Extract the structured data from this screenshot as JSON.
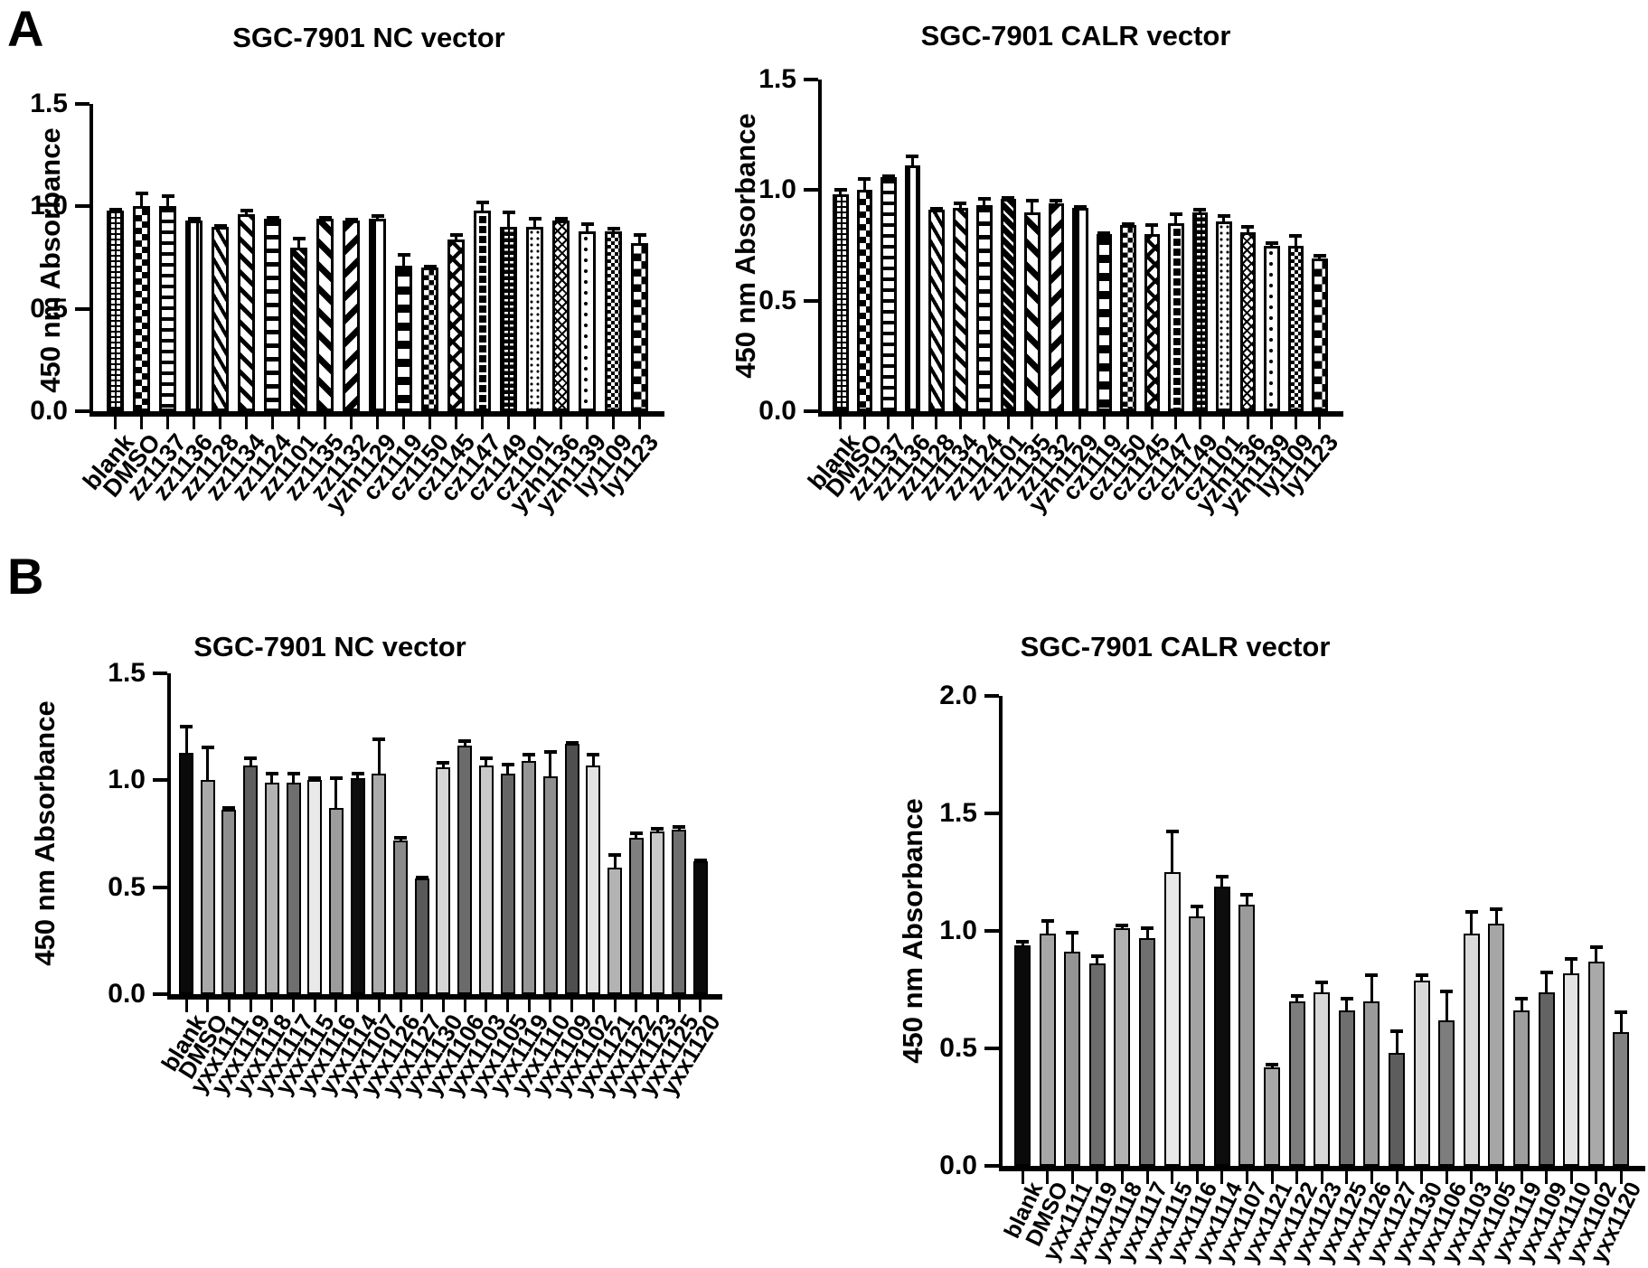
{
  "figure": {
    "background": "#ffffff",
    "ink": "#000000"
  },
  "panels": [
    {
      "label": "A"
    },
    {
      "label": "B"
    }
  ],
  "chart_data": [
    {
      "id": "chart-a-nc",
      "panel": "A",
      "type": "bar",
      "title": "SGC-7901 NC vector",
      "ylabel": "450 nm Absorbance",
      "yticks": [
        "0.0",
        "0.5",
        "1.0",
        "1.5"
      ],
      "ylim": [
        0,
        1.5
      ],
      "grid": false,
      "fill": "black-white-pattern",
      "error_bars": "upper",
      "bars": [
        {
          "label": "blank",
          "value": 0.98,
          "err": 0.01,
          "pattern": "grid-fine"
        },
        {
          "label": "DMSO",
          "value": 1.0,
          "err": 0.07,
          "pattern": "checker"
        },
        {
          "label": "zz1137",
          "value": 1.0,
          "err": 0.06,
          "pattern": "hlines"
        },
        {
          "label": "zz1136",
          "value": 0.93,
          "err": 0.02,
          "pattern": "vlines-thin"
        },
        {
          "label": "zz1128",
          "value": 0.9,
          "err": 0.01,
          "pattern": "diag-steep"
        },
        {
          "label": "zz1134",
          "value": 0.96,
          "err": 0.03,
          "pattern": "diag-left"
        },
        {
          "label": "zz1124",
          "value": 0.94,
          "err": 0.01,
          "pattern": "hlines-wide"
        },
        {
          "label": "zz1101",
          "value": 0.8,
          "err": 0.05,
          "pattern": "diag-dark"
        },
        {
          "label": "zz1135",
          "value": 0.94,
          "err": 0.01,
          "pattern": "diag-thick"
        },
        {
          "label": "zz1132",
          "value": 0.93,
          "err": 0.01,
          "pattern": "diag-right"
        },
        {
          "label": "yzh1129",
          "value": 0.94,
          "err": 0.02,
          "pattern": "vlines-wide"
        },
        {
          "label": "cz1119",
          "value": 0.71,
          "err": 0.06,
          "pattern": "hrungs"
        },
        {
          "label": "cz1150",
          "value": 0.7,
          "err": 0.01,
          "pattern": "checker-mid"
        },
        {
          "label": "cz1145",
          "value": 0.84,
          "err": 0.03,
          "pattern": "crosshatch"
        },
        {
          "label": "cz1147",
          "value": 0.98,
          "err": 0.05,
          "pattern": "meander"
        },
        {
          "label": "cz1149",
          "value": 0.9,
          "err": 0.08,
          "pattern": "dashgrid"
        },
        {
          "label": "cz1101",
          "value": 0.9,
          "err": 0.05,
          "pattern": "dots-fine"
        },
        {
          "label": "yzh1136",
          "value": 0.93,
          "err": 0.02,
          "pattern": "herring"
        },
        {
          "label": "yzh1139",
          "value": 0.88,
          "err": 0.04,
          "pattern": "dots-sparse"
        },
        {
          "label": "ly1109",
          "value": 0.88,
          "err": 0.02,
          "pattern": "checker-fine"
        },
        {
          "label": "ly1123",
          "value": 0.82,
          "err": 0.05,
          "pattern": "checker-coarse"
        }
      ]
    },
    {
      "id": "chart-a-calr",
      "panel": "A",
      "type": "bar",
      "title": "SGC-7901 CALR vector",
      "ylabel": "450 nm Absorbance",
      "yticks": [
        "0.0",
        "0.5",
        "1.0",
        "1.5"
      ],
      "ylim": [
        0,
        1.5
      ],
      "grid": false,
      "fill": "black-white-pattern",
      "error_bars": "upper",
      "bars": [
        {
          "label": "blank",
          "value": 0.98,
          "err": 0.03,
          "pattern": "grid-fine"
        },
        {
          "label": "DMSO",
          "value": 1.0,
          "err": 0.06,
          "pattern": "checker"
        },
        {
          "label": "zz1137",
          "value": 1.06,
          "err": 0.01,
          "pattern": "hlines"
        },
        {
          "label": "zz1136",
          "value": 1.11,
          "err": 0.05,
          "pattern": "vlines-thin"
        },
        {
          "label": "zz1128",
          "value": 0.91,
          "err": 0.01,
          "pattern": "diag-steep"
        },
        {
          "label": "zz1134",
          "value": 0.92,
          "err": 0.03,
          "pattern": "diag-left"
        },
        {
          "label": "zz1124",
          "value": 0.93,
          "err": 0.04,
          "pattern": "hlines-wide"
        },
        {
          "label": "zz1101",
          "value": 0.96,
          "err": 0.01,
          "pattern": "diag-dark"
        },
        {
          "label": "zz1135",
          "value": 0.9,
          "err": 0.06,
          "pattern": "diag-thick"
        },
        {
          "label": "zz1132",
          "value": 0.94,
          "err": 0.02,
          "pattern": "diag-right"
        },
        {
          "label": "yzh1129",
          "value": 0.92,
          "err": 0.01,
          "pattern": "vlines-wide"
        },
        {
          "label": "cz1119",
          "value": 0.8,
          "err": 0.01,
          "pattern": "hrungs"
        },
        {
          "label": "cz1150",
          "value": 0.84,
          "err": 0.01,
          "pattern": "checker-mid"
        },
        {
          "label": "cz1145",
          "value": 0.8,
          "err": 0.05,
          "pattern": "crosshatch"
        },
        {
          "label": "cz1147",
          "value": 0.85,
          "err": 0.05,
          "pattern": "meander"
        },
        {
          "label": "cz1149",
          "value": 0.9,
          "err": 0.02,
          "pattern": "dashgrid"
        },
        {
          "label": "cz1101",
          "value": 0.86,
          "err": 0.03,
          "pattern": "dots-fine"
        },
        {
          "label": "yzh1136",
          "value": 0.81,
          "err": 0.03,
          "pattern": "herring"
        },
        {
          "label": "yzh1139",
          "value": 0.75,
          "err": 0.02,
          "pattern": "dots-sparse"
        },
        {
          "label": "ly1109",
          "value": 0.75,
          "err": 0.05,
          "pattern": "checker-fine"
        },
        {
          "label": "ly1123",
          "value": 0.69,
          "err": 0.02,
          "pattern": "checker-coarse"
        }
      ]
    },
    {
      "id": "chart-b-nc",
      "panel": "B",
      "type": "bar",
      "title": "SGC-7901 NC vector",
      "ylabel": "450 nm Absorbance",
      "yticks": [
        "0.0",
        "0.5",
        "1.0",
        "1.5"
      ],
      "ylim": [
        0,
        1.5
      ],
      "grid": false,
      "fill": "solid-grayscale",
      "error_bars": "upper",
      "bars": [
        {
          "label": "blank",
          "value": 1.13,
          "err": 0.13,
          "color": "#0a0a0a"
        },
        {
          "label": "DMSO",
          "value": 1.0,
          "err": 0.16,
          "color": "#a9a9a9"
        },
        {
          "label": "yxx1111",
          "value": 0.86,
          "err": 0.02,
          "color": "#8f8f8f"
        },
        {
          "label": "yxx1119",
          "value": 1.07,
          "err": 0.04,
          "color": "#5f5f5f"
        },
        {
          "label": "yxx1118",
          "value": 0.99,
          "err": 0.05,
          "color": "#b3b3b3"
        },
        {
          "label": "yxx1117",
          "value": 0.99,
          "err": 0.05,
          "color": "#6f6f6f"
        },
        {
          "label": "yxx1115",
          "value": 1.0,
          "err": 0.02,
          "color": "#e9e9e9"
        },
        {
          "label": "yxx1116",
          "value": 0.87,
          "err": 0.15,
          "color": "#9c9c9c"
        },
        {
          "label": "yxx1114",
          "value": 1.01,
          "err": 0.03,
          "color": "#0d0d0d"
        },
        {
          "label": "yxx1107",
          "value": 1.03,
          "err": 0.17,
          "color": "#ababab"
        },
        {
          "label": "yxx1126",
          "value": 0.72,
          "err": 0.02,
          "color": "#8a8a8a"
        },
        {
          "label": "yxx1127",
          "value": 0.54,
          "err": 0.01,
          "color": "#595959"
        },
        {
          "label": "yxx1130",
          "value": 1.06,
          "err": 0.03,
          "color": "#d6d6d6"
        },
        {
          "label": "yxx1106",
          "value": 1.16,
          "err": 0.03,
          "color": "#6b6b6b"
        },
        {
          "label": "yxx1103",
          "value": 1.07,
          "err": 0.04,
          "color": "#c9c9c9"
        },
        {
          "label": "yxx1105",
          "value": 1.03,
          "err": 0.05,
          "color": "#666666"
        },
        {
          "label": "yxx1119",
          "value": 1.09,
          "err": 0.04,
          "color": "#959595"
        },
        {
          "label": "yxx1110",
          "value": 1.02,
          "err": 0.12,
          "color": "#8f8f8f"
        },
        {
          "label": "yxx1109",
          "value": 1.17,
          "err": 0.01,
          "color": "#4f4f4f"
        },
        {
          "label": "yxx1102",
          "value": 1.07,
          "err": 0.06,
          "color": "#e3e3e3"
        },
        {
          "label": "yxx1121",
          "value": 0.59,
          "err": 0.07,
          "color": "#b3b3b3"
        },
        {
          "label": "yxx1122",
          "value": 0.73,
          "err": 0.03,
          "color": "#808080"
        },
        {
          "label": "yxx1123",
          "value": 0.76,
          "err": 0.02,
          "color": "#c9c9c9"
        },
        {
          "label": "yxx1125",
          "value": 0.77,
          "err": 0.02,
          "color": "#6e6e6e"
        },
        {
          "label": "yxx1120",
          "value": 0.62,
          "err": 0.01,
          "color": "#0a0a0a"
        }
      ]
    },
    {
      "id": "chart-b-calr",
      "panel": "B",
      "type": "bar",
      "title": "SGC-7901 CALR vector",
      "ylabel": "450 nm Absorbance",
      "yticks": [
        "0.0",
        "0.5",
        "1.0",
        "1.5",
        "2.0"
      ],
      "ylim": [
        0,
        2.0
      ],
      "grid": false,
      "fill": "solid-grayscale",
      "error_bars": "upper",
      "bars": [
        {
          "label": "blank",
          "value": 0.94,
          "err": 0.02,
          "color": "#0a0a0a"
        },
        {
          "label": "DMSO",
          "value": 0.99,
          "err": 0.06,
          "color": "#a6a6a6"
        },
        {
          "label": "yxx1111",
          "value": 0.91,
          "err": 0.09,
          "color": "#949494"
        },
        {
          "label": "yxx1119",
          "value": 0.86,
          "err": 0.04,
          "color": "#6d6d6d"
        },
        {
          "label": "yxx1118",
          "value": 1.01,
          "err": 0.02,
          "color": "#b0b0b0"
        },
        {
          "label": "yxx1117",
          "value": 0.97,
          "err": 0.05,
          "color": "#707070"
        },
        {
          "label": "yxx1115",
          "value": 1.25,
          "err": 0.18,
          "color": "#e8e8e8"
        },
        {
          "label": "yxx1116",
          "value": 1.06,
          "err": 0.05,
          "color": "#a3a3a3"
        },
        {
          "label": "yxx1114",
          "value": 1.19,
          "err": 0.05,
          "color": "#0d0d0d"
        },
        {
          "label": "yxx1107",
          "value": 1.11,
          "err": 0.05,
          "color": "#9b9b9b"
        },
        {
          "label": "yxx1121",
          "value": 0.42,
          "err": 0.02,
          "color": "#a8a8a8"
        },
        {
          "label": "yxx1122",
          "value": 0.7,
          "err": 0.03,
          "color": "#7d7d7d"
        },
        {
          "label": "yxx1123",
          "value": 0.74,
          "err": 0.05,
          "color": "#d8d8d8"
        },
        {
          "label": "yxx1125",
          "value": 0.66,
          "err": 0.06,
          "color": "#6f6f6f"
        },
        {
          "label": "yxx1126",
          "value": 0.7,
          "err": 0.12,
          "color": "#9a9a9a"
        },
        {
          "label": "yxx1127",
          "value": 0.48,
          "err": 0.1,
          "color": "#5d5d5d"
        },
        {
          "label": "yxx1130",
          "value": 0.79,
          "err": 0.03,
          "color": "#d9d9d9"
        },
        {
          "label": "yxx1106",
          "value": 0.62,
          "err": 0.13,
          "color": "#7d7d7d"
        },
        {
          "label": "yxx1103",
          "value": 0.99,
          "err": 0.1,
          "color": "#d9d9d9"
        },
        {
          "label": "yxx1105",
          "value": 1.03,
          "err": 0.07,
          "color": "#a6a6a6"
        },
        {
          "label": "yxx1119",
          "value": 0.66,
          "err": 0.06,
          "color": "#9e9e9e"
        },
        {
          "label": "yxx1109",
          "value": 0.74,
          "err": 0.09,
          "color": "#636363"
        },
        {
          "label": "yxx1110",
          "value": 0.82,
          "err": 0.07,
          "color": "#e3e3e3"
        },
        {
          "label": "yxx1102",
          "value": 0.87,
          "err": 0.07,
          "color": "#a9a9a9"
        },
        {
          "label": "yxx1120",
          "value": 0.57,
          "err": 0.09,
          "color": "#818181"
        }
      ]
    }
  ]
}
